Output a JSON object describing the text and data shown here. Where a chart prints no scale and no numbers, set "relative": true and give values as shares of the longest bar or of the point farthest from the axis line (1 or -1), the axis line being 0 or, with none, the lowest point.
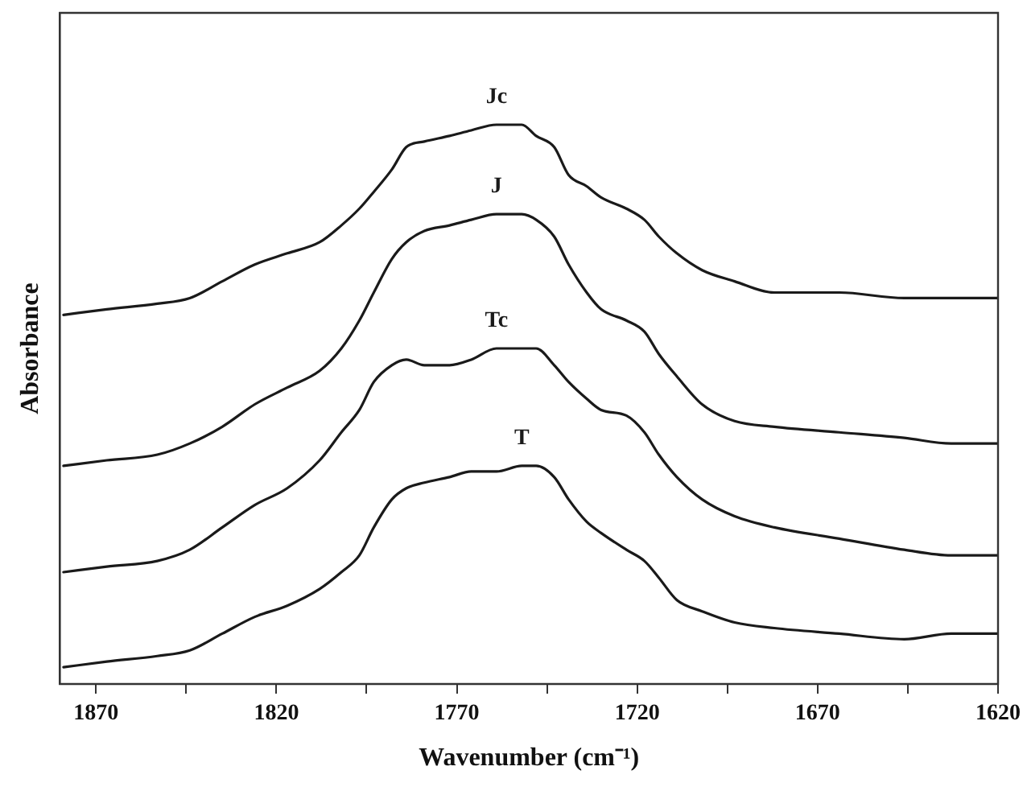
{
  "chart_data": {
    "type": "line",
    "xlabel": "Wavenumber (cm⁻¹)",
    "ylabel": "Absorbance",
    "relative": true,
    "legend": false,
    "grid": false,
    "marker": "none",
    "line_style": "solid",
    "x": [
      1879,
      1867,
      1853,
      1844,
      1835,
      1826,
      1817,
      1808,
      1802,
      1797,
      1793,
      1788,
      1784,
      1779,
      1772,
      1766,
      1759,
      1752,
      1748,
      1743,
      1739,
      1734,
      1730,
      1723,
      1718,
      1714,
      1709,
      1702,
      1693,
      1682,
      1664,
      1646,
      1633,
      1620
    ],
    "xlim": [
      1880,
      1620
    ],
    "xticks": [
      1870,
      {
        "value": 1845,
        "label": null
      },
      1820,
      {
        "value": 1795,
        "label": null
      },
      1770,
      {
        "value": 1745,
        "label": null
      },
      1720,
      {
        "value": 1695,
        "label": null
      },
      1670,
      {
        "value": 1645,
        "label": null
      },
      1620
    ],
    "series": [
      {
        "name": "Jc",
        "color": "#1a1a1a",
        "values": [
          0.66,
          0.67,
          0.68,
          0.69,
          0.72,
          0.75,
          0.77,
          0.79,
          0.82,
          0.85,
          0.88,
          0.92,
          0.96,
          0.97,
          0.98,
          0.99,
          1,
          1,
          0.98,
          0.96,
          0.91,
          0.89,
          0.87,
          0.85,
          0.83,
          0.8,
          0.77,
          0.74,
          0.72,
          0.7,
          0.7,
          0.69,
          0.69,
          0.69
        ]
      },
      {
        "name": "J",
        "color": "#1a1a1a",
        "values": [
          0.39,
          0.4,
          0.41,
          0.43,
          0.46,
          0.5,
          0.53,
          0.56,
          0.6,
          0.65,
          0.7,
          0.76,
          0.79,
          0.81,
          0.82,
          0.83,
          0.84,
          0.84,
          0.83,
          0.8,
          0.75,
          0.7,
          0.67,
          0.65,
          0.63,
          0.59,
          0.55,
          0.5,
          0.47,
          0.46,
          0.45,
          0.44,
          0.43,
          0.43
        ]
      },
      {
        "name": "Tc",
        "color": "#1a1a1a",
        "values": [
          0.2,
          0.21,
          0.22,
          0.24,
          0.28,
          0.32,
          0.35,
          0.4,
          0.45,
          0.49,
          0.54,
          0.57,
          0.58,
          0.57,
          0.57,
          0.58,
          0.6,
          0.6,
          0.6,
          0.57,
          0.54,
          0.51,
          0.49,
          0.48,
          0.45,
          0.41,
          0.37,
          0.33,
          0.3,
          0.28,
          0.26,
          0.24,
          0.23,
          0.23
        ]
      },
      {
        "name": "T",
        "color": "#1a1a1a",
        "values": [
          0.03,
          0.04,
          0.05,
          0.06,
          0.09,
          0.12,
          0.14,
          0.17,
          0.2,
          0.23,
          0.28,
          0.33,
          0.35,
          0.36,
          0.37,
          0.38,
          0.38,
          0.39,
          0.39,
          0.37,
          0.33,
          0.29,
          0.27,
          0.24,
          0.22,
          0.19,
          0.15,
          0.13,
          0.11,
          0.1,
          0.09,
          0.08,
          0.09,
          0.09
        ]
      }
    ]
  }
}
